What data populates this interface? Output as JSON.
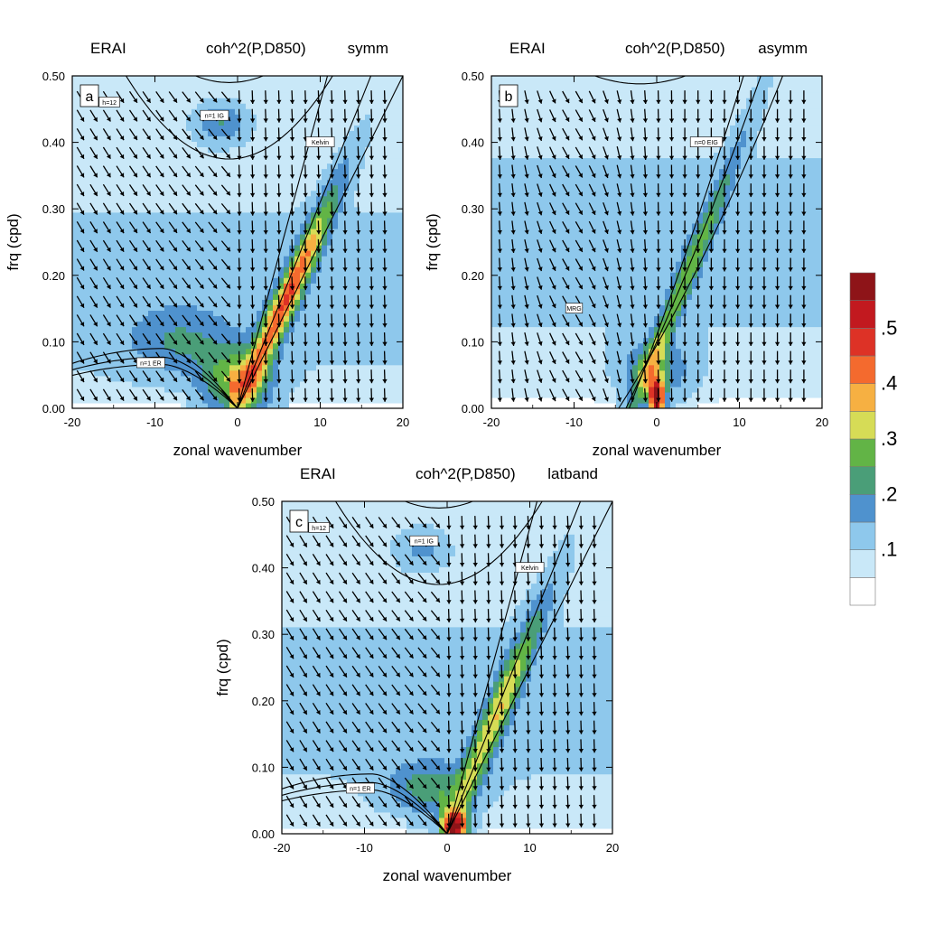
{
  "chart_data": [
    {
      "type": "heatmap",
      "panel_label": "a",
      "title_left": "ERAI",
      "title_center": "coh^2(P,D850)",
      "title_right": "symm",
      "xlabel": "zonal wavenumber",
      "ylabel": "frq (cpd)",
      "xlim": [
        -20,
        20
      ],
      "ylim": [
        0,
        0.5
      ],
      "x_ticks": [
        "-20",
        "-10",
        "0",
        "10",
        "20"
      ],
      "y_ticks": [
        "0.00",
        "0.10",
        "0.20",
        "0.30",
        "0.40",
        "0.50"
      ],
      "curves": [
        {
          "label": "h=12",
          "kind": "note"
        },
        {
          "label": "n=1 IG",
          "kind": "ig"
        },
        {
          "label": "Kelvin",
          "kind": "kelvin"
        },
        {
          "label": "n=1 ER",
          "kind": "er"
        }
      ],
      "max_region": {
        "wavenumber": 3,
        "frequency": 0.18,
        "value": 0.4
      },
      "arrows": "mostly pointing down-right on the negative-wavenumber side and straight down near and right of zero"
    },
    {
      "type": "heatmap",
      "panel_label": "b",
      "title_left": "ERAI",
      "title_center": "coh^2(P,D850)",
      "title_right": "asymm",
      "xlabel": "zonal wavenumber",
      "ylabel": "frq (cpd)",
      "xlim": [
        -20,
        20
      ],
      "ylim": [
        0,
        0.5
      ],
      "x_ticks": [
        "-20",
        "-10",
        "0",
        "10",
        "20"
      ],
      "y_ticks": [
        "0.00",
        "0.10",
        "0.20",
        "0.30",
        "0.40",
        "0.50"
      ],
      "curves": [
        {
          "label": "n=0 EIG",
          "kind": "eig"
        },
        {
          "label": "MRG",
          "kind": "mrg"
        }
      ],
      "max_region": {
        "wavenumber": 0,
        "frequency": 0.02,
        "value": 0.55
      }
    },
    {
      "type": "heatmap",
      "panel_label": "c",
      "title_left": "ERAI",
      "title_center": "coh^2(P,D850)",
      "title_right": "latband",
      "xlabel": "zonal wavenumber",
      "ylabel": "frq (cpd)",
      "xlim": [
        -20,
        20
      ],
      "ylim": [
        0,
        0.5
      ],
      "x_ticks": [
        "-20",
        "-10",
        "0",
        "10",
        "20"
      ],
      "y_ticks": [
        "0.00",
        "0.10",
        "0.20",
        "0.30",
        "0.40",
        "0.50"
      ],
      "curves": [
        {
          "label": "h=12",
          "kind": "note"
        },
        {
          "label": "n=1 IG",
          "kind": "ig"
        },
        {
          "label": "Kelvin",
          "kind": "kelvin"
        },
        {
          "label": "n=1 ER",
          "kind": "er"
        }
      ],
      "max_region": {
        "wavenumber": 1,
        "frequency": 0.02,
        "value": 0.5
      }
    }
  ],
  "colorbar": {
    "levels": [
      0.0,
      0.05,
      0.1,
      0.15,
      0.2,
      0.25,
      0.3,
      0.35,
      0.4,
      0.45,
      0.5,
      0.55
    ],
    "colors": [
      "#ffffff",
      "#c9e8f8",
      "#8ec8ec",
      "#4f92ce",
      "#4a9e78",
      "#62b446",
      "#d6dc56",
      "#f6b042",
      "#f46a2e",
      "#dd3226",
      "#c2191f",
      "#8e1418"
    ],
    "tick_labels": [
      ".1",
      ".2",
      ".3",
      ".4",
      ".5"
    ],
    "tick_values": [
      0.1,
      0.2,
      0.3,
      0.4,
      0.5
    ]
  }
}
